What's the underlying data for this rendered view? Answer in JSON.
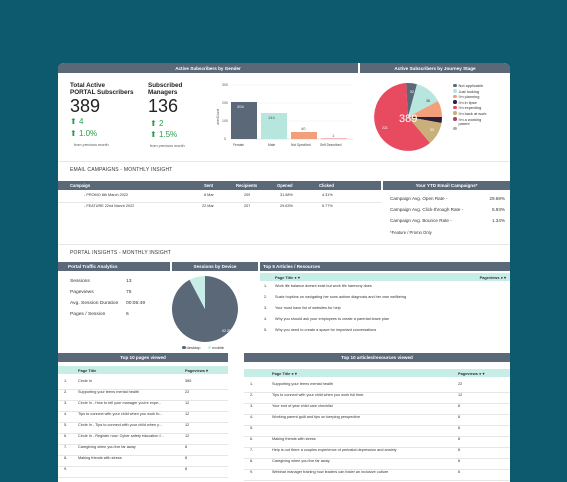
{
  "header_left": {
    "text": "Active Subscribers by Gender"
  },
  "header_right": {
    "text": "Active Subscribers by Journey Stage"
  },
  "kpi1": {
    "label1": "Total Active",
    "label2": "PORTAL Subscribers",
    "value": "389",
    "delta_count": "4",
    "delta_pct": "1.0%",
    "note": "from previous month"
  },
  "kpi2": {
    "label1": "Subscribed",
    "label2": "Managers",
    "value": "136",
    "delta_count": "2",
    "delta_pct": "1.5%",
    "note": "from previous month"
  },
  "gender_chart": {
    "ylabel": "userCount",
    "yticks": [
      "300",
      "200",
      "100",
      "0"
    ],
    "bars": [
      {
        "label": "Female",
        "value": "204",
        "color": "#5a6878"
      },
      {
        "label": "Male",
        "value": "144",
        "color": "#b6e6dd"
      },
      {
        "label": "Not Specified",
        "value": "40",
        "color": "#f2a07b"
      },
      {
        "label": "Self Described",
        "value": "1",
        "color": "#e84a5f"
      }
    ]
  },
  "journey_chart": {
    "labels": [
      "389",
      "221",
      "92",
      "36",
      "33"
    ],
    "legend": [
      {
        "label": "Not applicable",
        "color": "#5a6878"
      },
      {
        "label": "Just looking",
        "color": "#b6e6dd"
      },
      {
        "label": "I'm planning",
        "color": "#f2a07b"
      },
      {
        "label": "I'm in lipse",
        "color": "#2e1f3a"
      },
      {
        "label": "I'm expecting",
        "color": "#e84a5f"
      },
      {
        "label": "I'm back at work",
        "color": "#c9b07a"
      },
      {
        "label": "I'm a working",
        "color": "#a34a63"
      },
      {
        "label": "parent",
        "color": ""
      },
      {
        "label": "",
        "color": "#a9b1bb"
      }
    ]
  },
  "email_section": {
    "title": "EMAIL CAMPAIGNS - MONTHLY INSIGHT"
  },
  "campaign_table": {
    "headers": [
      "Campaign",
      "Sent",
      "Recipients",
      "Opened",
      "Clicked"
    ],
    "rows": [
      [
        "- PROMO 8th March 2022",
        "8 Mar",
        "209",
        "31.58%",
        "4.31%"
      ],
      [
        "- FEATURE 22nd March 2022",
        "22 Mar",
        "207",
        "29.63%",
        "5.77%"
      ]
    ]
  },
  "ytd": {
    "title": "Your YTD Email Campaigns*",
    "rows": [
      {
        "label": "Campaign Avg. Open Rate -",
        "value": "29.68%"
      },
      {
        "label": "Campaign Avg. Click-through Rate -",
        "value": "5.93%"
      },
      {
        "label": "Campaign Avg. Bounce Rate -",
        "value": "1.34%"
      }
    ],
    "footnote": "*Feature / Promo Only"
  },
  "portal_section": {
    "title": "PORTAL INSIGHTS - MONTHLY INSIGHT"
  },
  "traffic": {
    "title": "Portal Traffic Analytics",
    "rows": [
      {
        "label": "Sessions",
        "value": "13"
      },
      {
        "label": "Pageviews",
        "value": "75"
      },
      {
        "label": "Avg. Session Duration",
        "value": "00:05:49"
      },
      {
        "label": "Pages / Session",
        "value": "6"
      }
    ]
  },
  "device": {
    "title": "Sessions by Device",
    "slice_label": "92.3%",
    "legend": [
      "desktop",
      "mobile"
    ]
  },
  "top5": {
    "title": "Top 5 Articles / Resources",
    "col1": "Page Title",
    "col2": "Pageviews",
    "rows": [
      "Work life balance doesnt exist but work life harmony does",
      "Susie hopkins on navigating her sons autism diagnosis and her own wellbeing",
      "Your must have list of websites for help",
      "Why you should ask your employees to create a parental leave plan",
      "Why you need to create a space for important conversations"
    ]
  },
  "top10pages": {
    "title": "Top 10 pages viewed",
    "col1": "Page Title",
    "col2": "Pageviews",
    "rows": [
      [
        "Circle In",
        "365"
      ],
      [
        "Supporting your teens mental health",
        "22"
      ],
      [
        "Circle In - How to tell your manager you're expe...",
        "12"
      ],
      [
        "Tips to connect with your child when you work fu...",
        "12"
      ],
      [
        "Circle In - Tips to connect with your child when y...",
        "12"
      ],
      [
        "Circle In - Register now: Cyber safety education f...",
        "12"
      ],
      [
        "Caregiving when you live far away",
        "8"
      ],
      [
        "Making friends with stress",
        "8"
      ],
      [
        "",
        "8"
      ]
    ]
  },
  "top10articles": {
    "title": "Top 10 articles/resources viewed",
    "col1": "Page Title",
    "col2": "Pageviews",
    "rows": [
      [
        "Supporting your teens mental health",
        "22"
      ],
      [
        "Tips to connect with your child when you work full time.",
        "12"
      ],
      [
        "Your end of year child care checklist",
        "8"
      ],
      [
        "Working parent guilt and tips on keeping perspective",
        "8"
      ],
      [
        "",
        "8"
      ],
      [
        "Making friends with stress",
        "8"
      ],
      [
        "Help is out there a couples experience of perinatal depression and anxiety",
        "8"
      ],
      [
        "Caregiving when you live far away",
        "8"
      ],
      [
        "Webinar manager training how leaders can foster an inclusive culture",
        "6"
      ]
    ]
  }
}
